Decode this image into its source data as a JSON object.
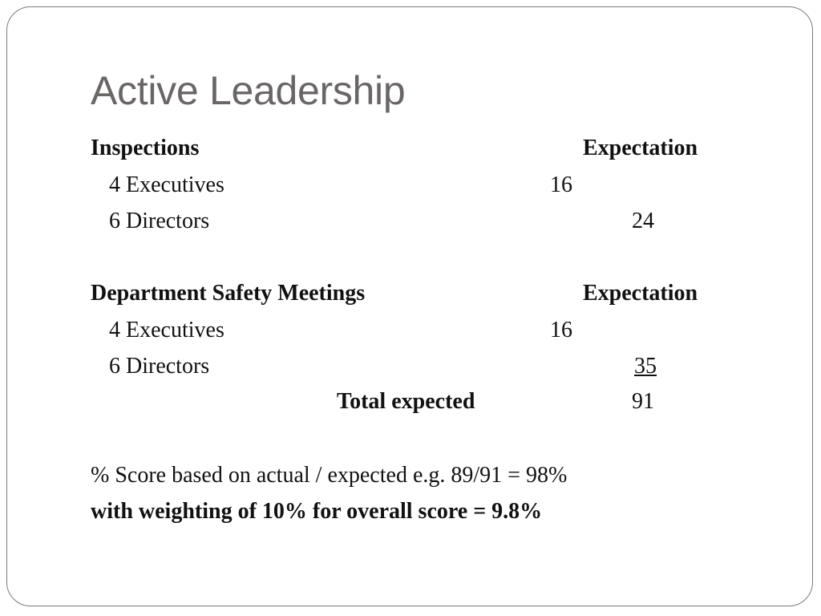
{
  "slide": {
    "title": "Active Leadership",
    "inspections": {
      "heading": "Inspections",
      "expectation_label": "Expectation",
      "executives_label": "4 Executives",
      "executives_value": "16",
      "directors_label": "6 Directors",
      "directors_value": "24"
    },
    "safety_meetings": {
      "heading": "Department Safety Meetings",
      "expectation_label": "Expectation",
      "executives_label": "4 Executives",
      "executives_value": "16",
      "directors_label": "6 Directors",
      "directors_value": "35"
    },
    "total": {
      "label": "Total expected",
      "value": "91"
    },
    "score_note": "% Score based on actual / expected e.g. 89/91 = 98%",
    "weighting_note": "with weighting of 10% for overall score = 9.8%"
  }
}
